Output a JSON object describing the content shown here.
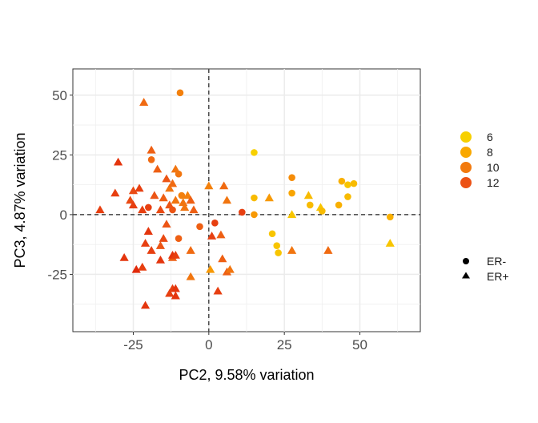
{
  "chart_data": {
    "type": "scatter",
    "title": "",
    "xlabel": "PC2, 9.58% variation",
    "ylabel": "PC3, 4.87% variation",
    "xlim": [
      -45,
      70
    ],
    "ylim": [
      -49,
      61
    ],
    "xticks": [
      -25,
      0,
      25,
      50
    ],
    "yticks": [
      -25,
      0,
      25,
      50
    ],
    "x_tick_labels": [
      "-25",
      "0",
      "25",
      "50"
    ],
    "y_tick_labels": [
      "-25",
      "0",
      "25",
      "50"
    ],
    "grid": true,
    "reference_lines": {
      "x": 0,
      "y": 0,
      "style": "dashed"
    },
    "color_legend": {
      "title": "",
      "entries": [
        {
          "label": "6",
          "value": 6,
          "color": "#F7D000"
        },
        {
          "label": "8",
          "value": 8,
          "color": "#F9A800"
        },
        {
          "label": "10",
          "value": 10,
          "color": "#F27A0E"
        },
        {
          "label": "12",
          "value": 12,
          "color": "#EC5215"
        }
      ]
    },
    "shape_legend": {
      "title": "",
      "entries": [
        {
          "label": "ER-",
          "shape": "circle"
        },
        {
          "label": "ER+",
          "shape": "triangle"
        }
      ]
    },
    "color_scale": {
      "min": 6,
      "max": 13.5,
      "stops": [
        "#F7D000",
        "#F9A800",
        "#F27A0E",
        "#EC5215",
        "#E12A0A"
      ]
    },
    "points": [
      {
        "x": -9.5,
        "y": 51,
        "v": 9.5,
        "er": "ER-"
      },
      {
        "x": -21.5,
        "y": 47,
        "v": 10.5,
        "er": "ER+"
      },
      {
        "x": -19,
        "y": 27,
        "v": 11,
        "er": "ER+"
      },
      {
        "x": -19,
        "y": 23,
        "v": 10.5,
        "er": "ER-"
      },
      {
        "x": -30,
        "y": 22,
        "v": 13,
        "er": "ER+"
      },
      {
        "x": -17,
        "y": 19,
        "v": 11,
        "er": "ER+"
      },
      {
        "x": -14,
        "y": 15,
        "v": 11.5,
        "er": "ER+"
      },
      {
        "x": -13,
        "y": 11,
        "v": 10,
        "er": "ER+"
      },
      {
        "x": -11,
        "y": 19,
        "v": 10,
        "er": "ER+"
      },
      {
        "x": -10,
        "y": 17,
        "v": 10,
        "er": "ER-"
      },
      {
        "x": -12,
        "y": 13,
        "v": 10.5,
        "er": "ER+"
      },
      {
        "x": -31,
        "y": 9,
        "v": 12.5,
        "er": "ER+"
      },
      {
        "x": -25,
        "y": 10,
        "v": 12,
        "er": "ER+"
      },
      {
        "x": -23,
        "y": 11,
        "v": 12.5,
        "er": "ER+"
      },
      {
        "x": -26,
        "y": 6,
        "v": 12,
        "er": "ER+"
      },
      {
        "x": -25,
        "y": 4,
        "v": 12.5,
        "er": "ER+"
      },
      {
        "x": -22,
        "y": 2,
        "v": 12.5,
        "er": "ER+"
      },
      {
        "x": -20,
        "y": 3,
        "v": 12.5,
        "er": "ER-"
      },
      {
        "x": -18,
        "y": 8,
        "v": 11.5,
        "er": "ER+"
      },
      {
        "x": -16,
        "y": 2,
        "v": 12,
        "er": "ER+"
      },
      {
        "x": -15,
        "y": 7,
        "v": 11,
        "er": "ER+"
      },
      {
        "x": -13,
        "y": 4,
        "v": 11.5,
        "er": "ER+"
      },
      {
        "x": -12,
        "y": 2,
        "v": 11.5,
        "er": "ER-"
      },
      {
        "x": -11,
        "y": 6,
        "v": 10,
        "er": "ER+"
      },
      {
        "x": -9,
        "y": 8,
        "v": 9.5,
        "er": "ER-"
      },
      {
        "x": -8.5,
        "y": 5,
        "v": 10,
        "er": "ER+"
      },
      {
        "x": -8,
        "y": 3,
        "v": 10,
        "er": "ER+"
      },
      {
        "x": -7,
        "y": 8,
        "v": 9.5,
        "er": "ER+"
      },
      {
        "x": -6,
        "y": 6,
        "v": 11,
        "er": "ER+"
      },
      {
        "x": -5,
        "y": 2,
        "v": 11,
        "er": "ER+"
      },
      {
        "x": -36,
        "y": 2,
        "v": 12.5,
        "er": "ER+"
      },
      {
        "x": 0,
        "y": 12,
        "v": 9.5,
        "er": "ER+"
      },
      {
        "x": 5,
        "y": 12,
        "v": 10.5,
        "er": "ER+"
      },
      {
        "x": 6,
        "y": 6,
        "v": 10,
        "er": "ER+"
      },
      {
        "x": 11,
        "y": 1,
        "v": 12.5,
        "er": "ER-"
      },
      {
        "x": 15,
        "y": 26,
        "v": 6,
        "er": "ER-"
      },
      {
        "x": 15,
        "y": 7,
        "v": 7,
        "er": "ER-"
      },
      {
        "x": 15,
        "y": 0,
        "v": 8.5,
        "er": "ER-"
      },
      {
        "x": 20,
        "y": 7,
        "v": 8.5,
        "er": "ER+"
      },
      {
        "x": 27.5,
        "y": 15.5,
        "v": 9,
        "er": "ER-"
      },
      {
        "x": 27.5,
        "y": 9,
        "v": 8,
        "er": "ER-"
      },
      {
        "x": 27.5,
        "y": 0,
        "v": 6.5,
        "er": "ER+"
      },
      {
        "x": 33,
        "y": 8,
        "v": 7,
        "er": "ER+"
      },
      {
        "x": 33.5,
        "y": 4,
        "v": 7,
        "er": "ER-"
      },
      {
        "x": 37,
        "y": 3,
        "v": 6.5,
        "er": "ER+"
      },
      {
        "x": 37.5,
        "y": 1.5,
        "v": 7,
        "er": "ER-"
      },
      {
        "x": 43,
        "y": 4,
        "v": 7.5,
        "er": "ER-"
      },
      {
        "x": 44,
        "y": 14,
        "v": 7.5,
        "er": "ER-"
      },
      {
        "x": 46,
        "y": 12.5,
        "v": 6.5,
        "er": "ER-"
      },
      {
        "x": 48,
        "y": 13,
        "v": 7,
        "er": "ER-"
      },
      {
        "x": 46,
        "y": 7.5,
        "v": 7,
        "er": "ER-"
      },
      {
        "x": 60,
        "y": -1,
        "v": 7.5,
        "er": "ER-"
      },
      {
        "x": 60,
        "y": -12,
        "v": 6.5,
        "er": "ER+"
      },
      {
        "x": 21,
        "y": -8,
        "v": 6.5,
        "er": "ER-"
      },
      {
        "x": 22.5,
        "y": -13,
        "v": 6.5,
        "er": "ER-"
      },
      {
        "x": 23,
        "y": -16,
        "v": 6.5,
        "er": "ER-"
      },
      {
        "x": 27.5,
        "y": -15,
        "v": 10,
        "er": "ER+"
      },
      {
        "x": 39.5,
        "y": -15,
        "v": 10.5,
        "er": "ER+"
      },
      {
        "x": 2,
        "y": -3.5,
        "v": 12.5,
        "er": "ER-"
      },
      {
        "x": -3,
        "y": -5,
        "v": 11,
        "er": "ER-"
      },
      {
        "x": 1,
        "y": -9,
        "v": 12.5,
        "er": "ER+"
      },
      {
        "x": 0.5,
        "y": -23,
        "v": 8.5,
        "er": "ER+"
      },
      {
        "x": 4,
        "y": -8.5,
        "v": 11,
        "er": "ER+"
      },
      {
        "x": 4.5,
        "y": -18.5,
        "v": 11,
        "er": "ER+"
      },
      {
        "x": 6,
        "y": -24,
        "v": 11,
        "er": "ER+"
      },
      {
        "x": 7,
        "y": -23,
        "v": 10,
        "er": "ER+"
      },
      {
        "x": 3,
        "y": -32,
        "v": 12.5,
        "er": "ER+"
      },
      {
        "x": -6,
        "y": -15,
        "v": 10.5,
        "er": "ER+"
      },
      {
        "x": -6,
        "y": -26,
        "v": 10,
        "er": "ER+"
      },
      {
        "x": -10,
        "y": -10,
        "v": 11,
        "er": "ER-"
      },
      {
        "x": -12,
        "y": -18,
        "v": 11,
        "er": "ER+"
      },
      {
        "x": -14,
        "y": -4,
        "v": 11.5,
        "er": "ER+"
      },
      {
        "x": -15,
        "y": -10,
        "v": 12,
        "er": "ER+"
      },
      {
        "x": -16,
        "y": -13,
        "v": 11.5,
        "er": "ER+"
      },
      {
        "x": -16,
        "y": -19,
        "v": 13,
        "er": "ER+"
      },
      {
        "x": -19,
        "y": -15,
        "v": 12.5,
        "er": "ER+"
      },
      {
        "x": -20,
        "y": -7,
        "v": 13,
        "er": "ER+"
      },
      {
        "x": -21,
        "y": -12,
        "v": 12.5,
        "er": "ER+"
      },
      {
        "x": -22,
        "y": -22,
        "v": 12.5,
        "er": "ER+"
      },
      {
        "x": -28,
        "y": -18,
        "v": 13,
        "er": "ER+"
      },
      {
        "x": -24,
        "y": -23,
        "v": 13.5,
        "er": "ER+"
      },
      {
        "x": -21,
        "y": -38,
        "v": 13,
        "er": "ER+"
      },
      {
        "x": -13,
        "y": -33,
        "v": 12.5,
        "er": "ER+"
      },
      {
        "x": -12,
        "y": -31,
        "v": 12.5,
        "er": "ER+"
      },
      {
        "x": -11,
        "y": -34,
        "v": 13,
        "er": "ER+"
      },
      {
        "x": -11,
        "y": -31,
        "v": 13,
        "er": "ER+"
      },
      {
        "x": -12,
        "y": -17,
        "v": 13,
        "er": "ER+"
      },
      {
        "x": -11,
        "y": -17,
        "v": 12.5,
        "er": "ER+"
      }
    ]
  }
}
